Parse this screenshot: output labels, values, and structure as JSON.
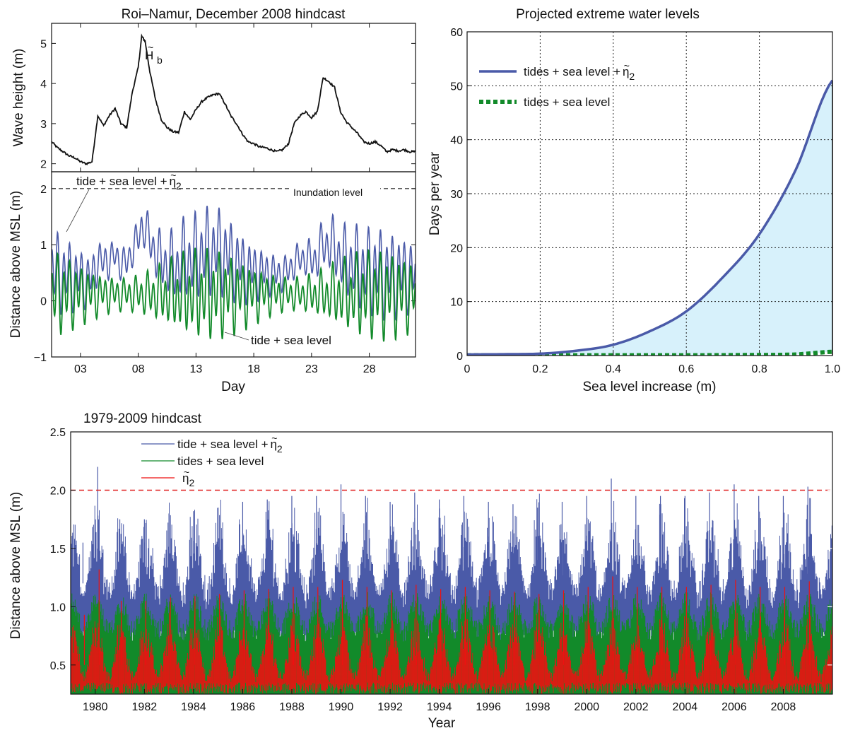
{
  "chart_data": [
    {
      "type": "line",
      "panel": "top-left-upper",
      "title": "Roi–Namur, December 2008 hindcast",
      "ylabel": "Wave height (m)",
      "xlim": [
        0.5,
        32
      ],
      "ylim": [
        1.8,
        5.5
      ],
      "yticks": [
        "2",
        "3",
        "4",
        "5"
      ],
      "annotation": {
        "base": "H",
        "accent": "~",
        "sub": "b"
      },
      "series": [
        {
          "values_x": [
            0.5,
            1,
            1.5,
            2,
            2.5,
            3,
            3.5,
            4,
            4.5,
            5,
            5.5,
            6,
            6.5,
            7,
            7.5,
            8,
            8.3,
            8.6,
            9,
            9.5,
            10,
            10.5,
            11,
            11.5,
            12,
            12.5,
            13,
            13.5,
            14,
            14.5,
            15,
            15.5,
            16,
            16.5,
            17,
            17.5,
            18,
            18.5,
            19,
            19.5,
            20,
            20.5,
            21,
            21.5,
            22,
            22.5,
            23,
            23.5,
            24,
            24.5,
            25,
            25.5,
            26,
            26.5,
            27,
            27.5,
            28,
            28.5,
            29,
            29.5,
            30,
            30.5,
            31,
            31.5,
            32
          ],
          "values_y": [
            2.55,
            2.4,
            2.3,
            2.2,
            2.15,
            2.05,
            2.0,
            2.05,
            3.2,
            2.95,
            3.2,
            3.38,
            3.0,
            2.9,
            3.8,
            4.4,
            5.18,
            5.05,
            4.3,
            3.6,
            3.1,
            2.9,
            2.8,
            2.78,
            3.3,
            3.1,
            3.35,
            3.55,
            3.65,
            3.72,
            3.75,
            3.5,
            3.2,
            3.0,
            2.75,
            2.55,
            2.5,
            2.42,
            2.4,
            2.35,
            2.3,
            2.35,
            2.5,
            3.0,
            3.2,
            3.3,
            3.15,
            3.3,
            4.15,
            4.05,
            3.9,
            3.3,
            3.05,
            2.9,
            2.75,
            2.55,
            2.5,
            2.55,
            2.45,
            2.3,
            2.35,
            2.32,
            2.35,
            2.3,
            2.3
          ]
        }
      ]
    },
    {
      "type": "line",
      "panel": "top-left-lower",
      "xlabel": "Day",
      "ylabel": "Distance above MSL (m)",
      "xlim": [
        0.5,
        32
      ],
      "ylim": [
        -1,
        2.3
      ],
      "xticks": [
        "03",
        "08",
        "13",
        "18",
        "23",
        "28"
      ],
      "xtick_values": [
        3,
        8,
        13,
        18,
        23,
        28
      ],
      "yticks": [
        "−1",
        "0",
        "1",
        "2"
      ],
      "inundation_level": 2,
      "inundation_label": "Inundation level",
      "series_labels": [
        "tide + sea level + ",
        "tide + sea level"
      ],
      "eta_label": {
        "base": "η",
        "accent": "~",
        "sub": "2"
      },
      "series_colors": [
        "#4a5aa8",
        "#128a2a"
      ]
    },
    {
      "type": "area",
      "panel": "top-right",
      "title": "Projected extreme water levels",
      "xlabel": "Sea level increase (m)",
      "ylabel": "Days per year",
      "xlim": [
        0,
        1.0
      ],
      "ylim": [
        0,
        60
      ],
      "xticks": [
        "0",
        "0.2",
        "0.4",
        "0.6",
        "0.8",
        "1.0"
      ],
      "yticks": [
        "0",
        "10",
        "20",
        "30",
        "40",
        "50",
        "60"
      ],
      "grid": true,
      "legend": "top-left",
      "series": [
        {
          "legend": "tides + sea level + ",
          "color": "#4a5aa8",
          "style": "solid",
          "x": [
            0,
            0.1,
            0.2,
            0.3,
            0.4,
            0.5,
            0.6,
            0.7,
            0.8,
            0.9,
            1.0
          ],
          "y": [
            0.2,
            0.25,
            0.35,
            0.9,
            2.0,
            4.5,
            8.2,
            14.5,
            22.5,
            34.5,
            51.0
          ]
        },
        {
          "legend": "tides + sea level",
          "color": "#128a2a",
          "style": "dotted",
          "x": [
            0,
            0.2,
            0.4,
            0.6,
            0.8,
            0.9,
            1.0
          ],
          "y": [
            0.05,
            0.05,
            0.05,
            0.05,
            0.1,
            0.2,
            0.7
          ]
        }
      ],
      "eta_label": {
        "base": "η",
        "accent": "~",
        "sub": "2"
      },
      "fill_color": "#d7f1fb"
    },
    {
      "type": "line",
      "panel": "bottom",
      "title": "1979-2009 hindcast",
      "xlabel": "Year",
      "ylabel": "Distance above MSL (m)",
      "xlim": [
        1979,
        2010
      ],
      "ylim": [
        0.25,
        2.5
      ],
      "xticks": [
        "1980",
        "1982",
        "1984",
        "1986",
        "1988",
        "1990",
        "1992",
        "1994",
        "1996",
        "1998",
        "2000",
        "2002",
        "2004",
        "2006",
        "2008"
      ],
      "xtick_values": [
        1980,
        1982,
        1984,
        1986,
        1988,
        1990,
        1992,
        1994,
        1996,
        1998,
        2000,
        2002,
        2004,
        2006,
        2008
      ],
      "yticks": [
        "0.5",
        "1.0",
        "1.5",
        "2.0",
        "2.5"
      ],
      "threshold": 2.0,
      "threshold_color": "#e02020",
      "legend": "top-left",
      "series": [
        {
          "legend": "tide + sea level + ",
          "color": "#4a5aa8"
        },
        {
          "legend": "tides + sea level",
          "color": "#128a2a"
        },
        {
          "legend": "",
          "color": "#ee1111"
        }
      ],
      "eta_label": {
        "base": "η",
        "accent": "~",
        "sub": "2"
      },
      "annual_peaks": [
        {
          "year": 1979.5,
          "value": 1.55
        },
        {
          "year": 1980.1,
          "value": 2.2
        },
        {
          "year": 1981.0,
          "value": 1.75
        },
        {
          "year": 1982.0,
          "value": 1.75
        },
        {
          "year": 1983.0,
          "value": 1.8
        },
        {
          "year": 1984.0,
          "value": 1.82
        },
        {
          "year": 1985.0,
          "value": 1.85
        },
        {
          "year": 1986.0,
          "value": 1.9
        },
        {
          "year": 1987.0,
          "value": 1.92
        },
        {
          "year": 1988.0,
          "value": 1.95
        },
        {
          "year": 1989.0,
          "value": 1.95
        },
        {
          "year": 1990.0,
          "value": 2.05
        },
        {
          "year": 1991.0,
          "value": 1.95
        },
        {
          "year": 1992.0,
          "value": 1.9
        },
        {
          "year": 1993.0,
          "value": 1.98
        },
        {
          "year": 1994.0,
          "value": 1.92
        },
        {
          "year": 1995.0,
          "value": 1.95
        },
        {
          "year": 1996.0,
          "value": 1.9
        },
        {
          "year": 1997.0,
          "value": 1.88
        },
        {
          "year": 1998.0,
          "value": 1.85
        },
        {
          "year": 1999.0,
          "value": 1.9
        },
        {
          "year": 2000.0,
          "value": 1.95
        },
        {
          "year": 2001.0,
          "value": 2.1
        },
        {
          "year": 2002.0,
          "value": 1.95
        },
        {
          "year": 2003.0,
          "value": 1.95
        },
        {
          "year": 2004.0,
          "value": 1.95
        },
        {
          "year": 2005.0,
          "value": 1.98
        },
        {
          "year": 2006.0,
          "value": 2.05
        },
        {
          "year": 2007.0,
          "value": 1.95
        },
        {
          "year": 2008.0,
          "value": 1.95
        },
        {
          "year": 2009.0,
          "value": 2.03
        }
      ]
    }
  ]
}
